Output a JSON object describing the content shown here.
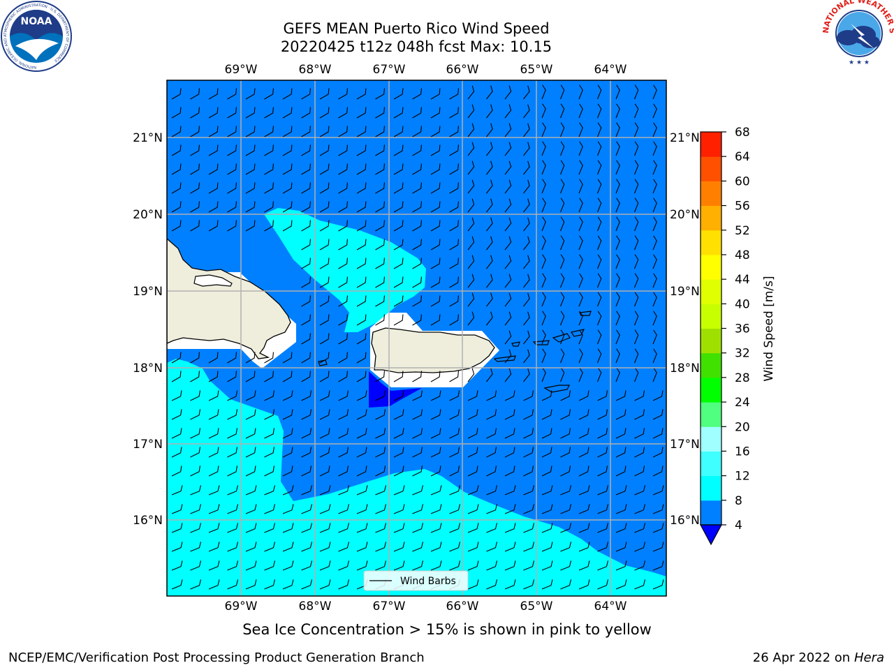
{
  "title_line1": "GEFS MEAN Puerto Rico Wind Speed",
  "title_line2": "20220425 t12z 048h fcst   Max: 10.15",
  "caption": "Sea Ice Concentration > 15% is shown in pink to yellow",
  "footer_left": "NCEP/EMC/Verification Post Processing Product Generation Branch",
  "footer_date": "26 Apr 2022 on ",
  "footer_host": "Hera",
  "legend_label": "Wind Barbs",
  "colorbar": {
    "label": "Wind Speed [m/s]",
    "ticks": [
      "4",
      "8",
      "12",
      "16",
      "20",
      "24",
      "28",
      "32",
      "36",
      "40",
      "44",
      "48",
      "52",
      "56",
      "60",
      "64",
      "68"
    ],
    "colors": [
      "#0080ff",
      "#00ffff",
      "#40ffff",
      "#a0ffff",
      "#50ff80",
      "#00ff00",
      "#40e000",
      "#a0e000",
      "#c8ff00",
      "#e0ff00",
      "#ffff00",
      "#ffe000",
      "#ffb000",
      "#ff8000",
      "#ff5000",
      "#ff2000",
      "#ff0000"
    ],
    "extend_color": "#0000ff"
  },
  "map": {
    "lon_labels": [
      "69°W",
      "68°W",
      "67°W",
      "66°W",
      "65°W",
      "64°W"
    ],
    "lat_labels": [
      "21°N",
      "20°N",
      "19°N",
      "18°N",
      "17°N",
      "16°N"
    ],
    "ocean_color": "#0080ff",
    "high_wind_color": "#00ffff",
    "low_wind_color": "#0000ff",
    "land_color": "#efeedd"
  },
  "logos": {
    "noaa": "NOAA",
    "noaa_ring": "NATIONAL OCEANIC AND ATMOSPHERIC ADMINISTRATION · U.S. DEPARTMENT OF COMMERCE",
    "nws_ring": "NATIONAL WEATHER SERVICE"
  }
}
